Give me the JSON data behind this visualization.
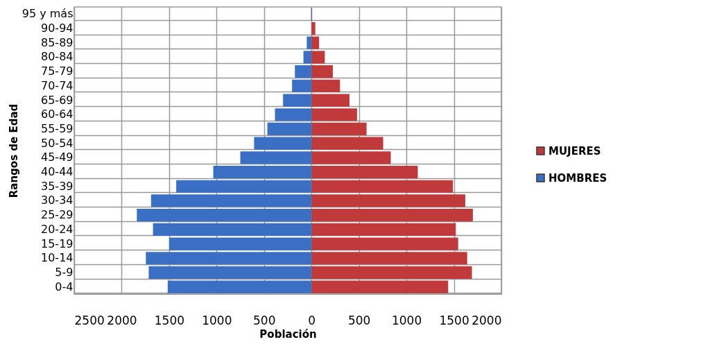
{
  "chart_data": {
    "type": "bar",
    "orientation": "horizontal",
    "xlabel": "Población",
    "ylabel": "Rangos de Edad",
    "categories": [
      "95 y más",
      "90-94",
      "85-89",
      "80-84",
      "75-79",
      "70-74",
      "65-69",
      "60-64",
      "55-59",
      "50-54",
      "45-49",
      "40-44",
      "35-39",
      "30-34",
      "25-29",
      "20-24",
      "15-19",
      "10-14",
      "5-9",
      "0-4"
    ],
    "series": [
      {
        "name": "MUJERES",
        "color": "#c0393b",
        "values": [
          5,
          40,
          80,
          140,
          225,
          300,
          400,
          480,
          580,
          755,
          835,
          1120,
          1490,
          1620,
          1700,
          1520,
          1545,
          1640,
          1690,
          1440
        ]
      },
      {
        "name": "HOMBRES",
        "color": "#3b6fc4",
        "values": [
          -5,
          null,
          -50,
          -85,
          -175,
          -205,
          -300,
          -385,
          -465,
          -605,
          -750,
          -1035,
          -1425,
          -1690,
          -1840,
          -1670,
          -1500,
          -1745,
          -1715,
          -1515
        ]
      }
    ],
    "xlim": [
      -2500,
      2000
    ],
    "xticks": [
      {
        "value": -2500,
        "label": "2500"
      },
      {
        "value": -2000,
        "label": "2000"
      },
      {
        "value": -1500,
        "label": "1500"
      },
      {
        "value": -1000,
        "label": "1000"
      },
      {
        "value": -500,
        "label": "500"
      },
      0,
      500,
      1000,
      1500,
      2000
    ],
    "stacked": true,
    "grid": true,
    "legend": "right"
  }
}
